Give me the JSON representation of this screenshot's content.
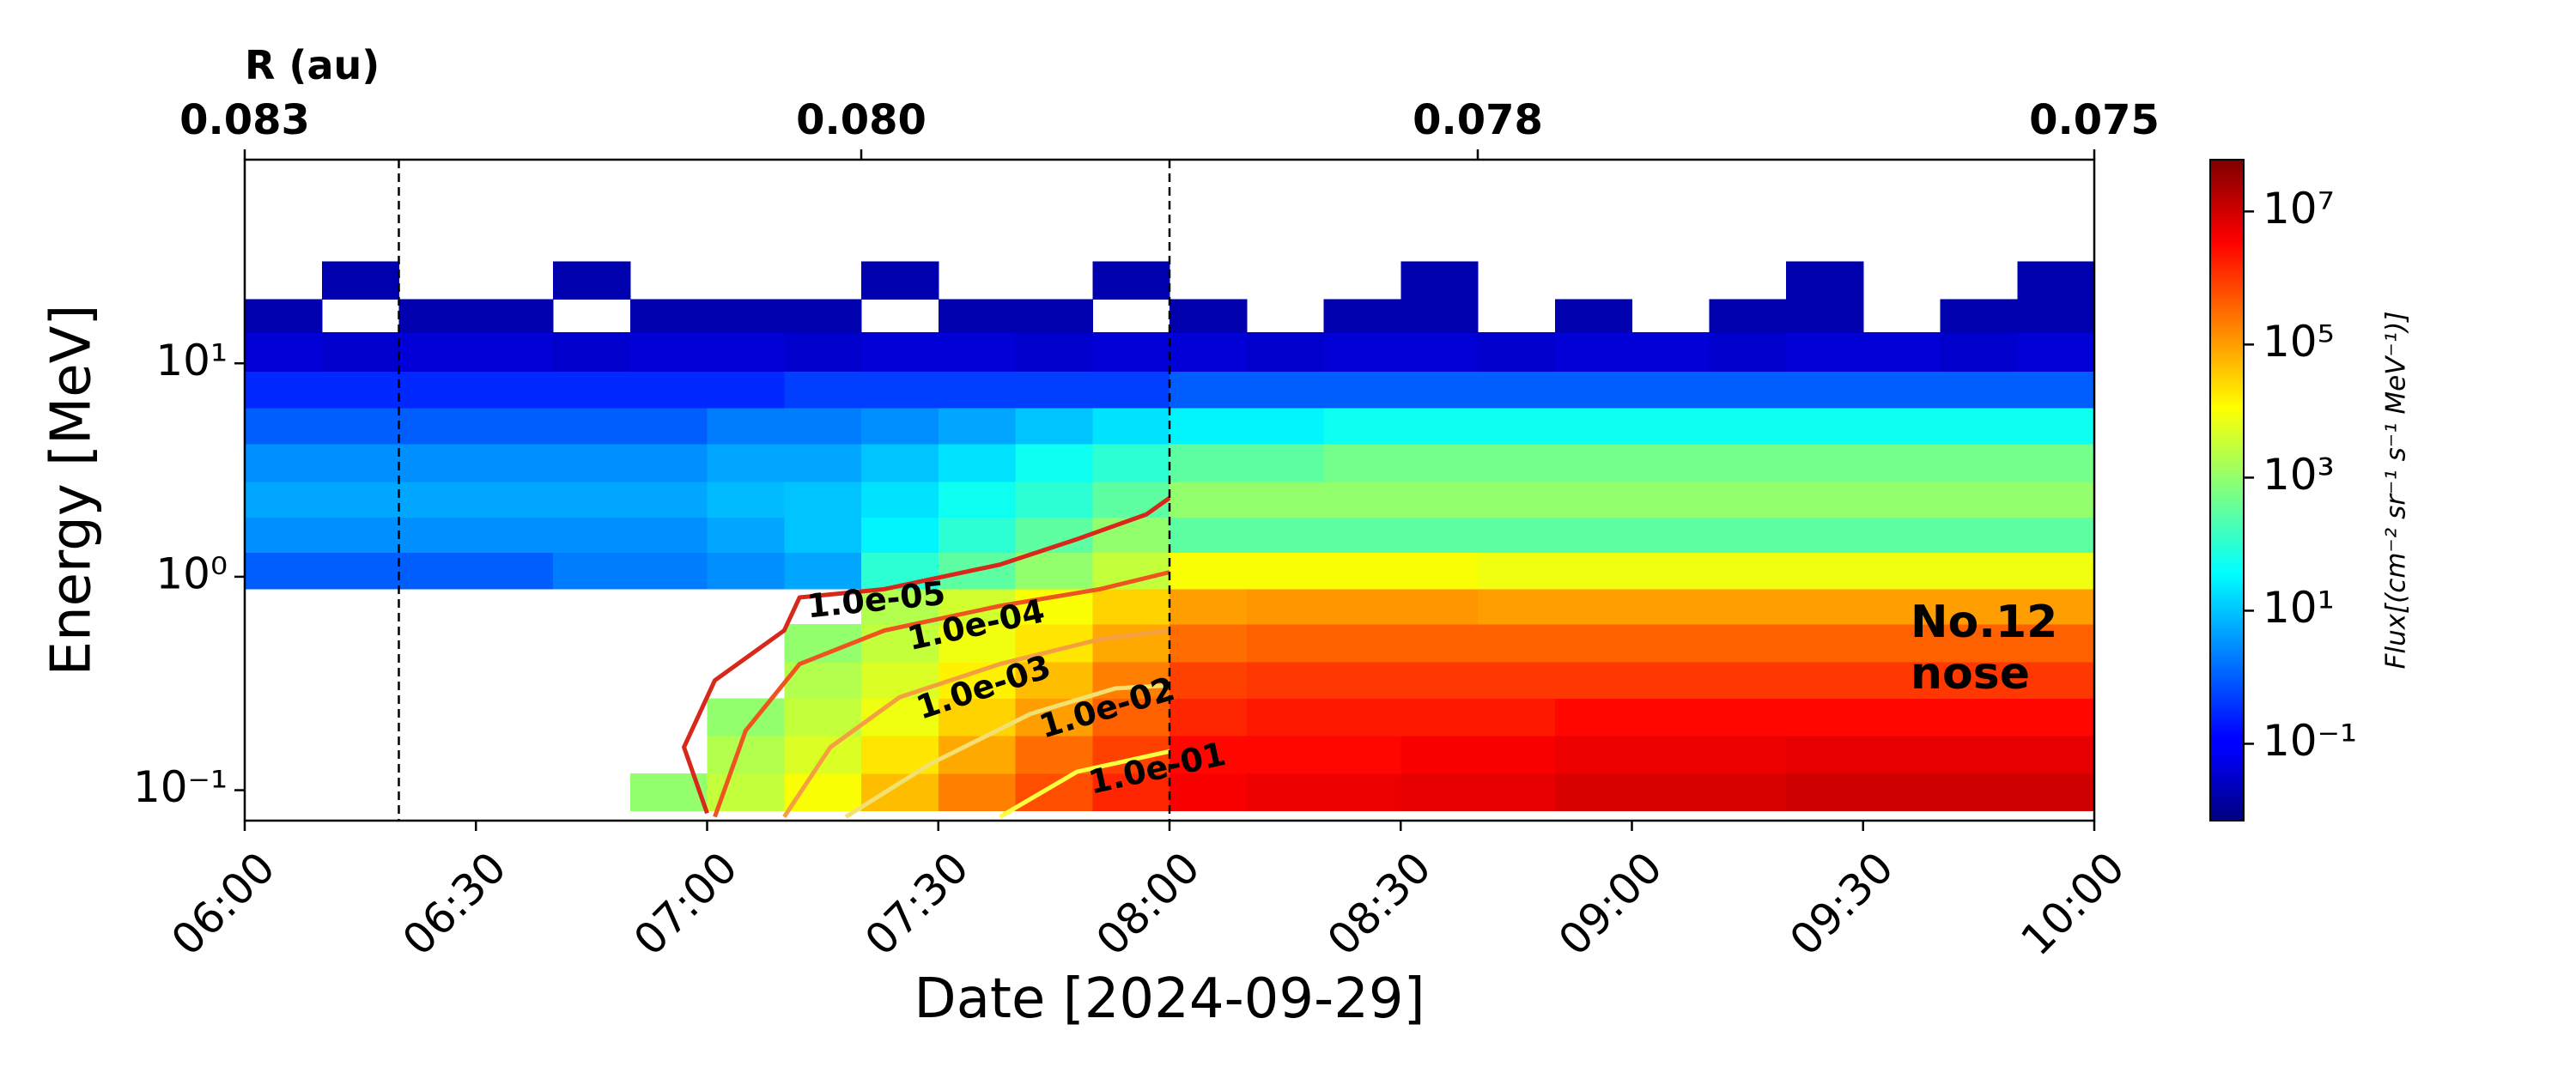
{
  "chart_data": {
    "type": "heatmap",
    "xlabel": "Date [2024-09-29]",
    "ylabel": "Energy [MeV]",
    "xlim": [
      "06:00",
      "10:00"
    ],
    "xticks": [
      "06:00",
      "06:30",
      "07:00",
      "07:30",
      "08:00",
      "08:30",
      "09:00",
      "09:30",
      "10:00"
    ],
    "x2label": "R (au)",
    "x2ticks": [
      {
        "value": "06:00",
        "label": "0.083"
      },
      {
        "value": "07:20",
        "label": "0.080"
      },
      {
        "value": "08:40",
        "label": "0.078"
      },
      {
        "value": "10:00",
        "label": "0.075"
      }
    ],
    "ylim": [
      0.072,
      90
    ],
    "yscale": "log",
    "yticks": [
      {
        "value": 0.1,
        "label": "10⁻¹"
      },
      {
        "value": 1,
        "label": "10⁰"
      },
      {
        "value": 10,
        "label": "10¹"
      }
    ],
    "x_edges": [
      "06:00",
      "06:10",
      "06:20",
      "06:30",
      "06:40",
      "06:50",
      "07:00",
      "07:10",
      "07:20",
      "07:30",
      "07:40",
      "07:50",
      "08:00",
      "08:10",
      "08:20",
      "08:30",
      "08:40",
      "08:50",
      "09:00",
      "09:10",
      "09:20",
      "09:30",
      "09:40",
      "09:50",
      "10:00"
    ],
    "y_edges": [
      0.08,
      0.12,
      0.18,
      0.27,
      0.4,
      0.6,
      0.88,
      1.3,
      1.9,
      2.8,
      4.2,
      6.2,
      9.2,
      14,
      20,
      30
    ],
    "z": [
      [
        null,
        null,
        null,
        null,
        null,
        1000.0,
        3000.0,
        10000.0,
        50000.0,
        200000.0,
        600000.0,
        1500000.0,
        4000000.0,
        5000000.0,
        5000000.0,
        6000000.0,
        6000000.0,
        8000000.0,
        8000000.0,
        8000000.0,
        10000000.0,
        10000000.0,
        10000000.0,
        10000000.0
      ],
      [
        null,
        null,
        null,
        null,
        null,
        null,
        2000.0,
        5000.0,
        20000.0,
        80000.0,
        300000.0,
        800000.0,
        3000000.0,
        3000000.0,
        3000000.0,
        4000000.0,
        4000000.0,
        5000000.0,
        5000000.0,
        5000000.0,
        6000000.0,
        6000000.0,
        6000000.0,
        6000000.0
      ],
      [
        null,
        null,
        null,
        null,
        null,
        null,
        1000.0,
        3000.0,
        8000.0,
        30000.0,
        100000.0,
        400000.0,
        1500000.0,
        2000000.0,
        2000000.0,
        2000000.0,
        2000000.0,
        3000000.0,
        3000000.0,
        3000000.0,
        3000000.0,
        3000000.0,
        3000000.0,
        3000000.0
      ],
      [
        null,
        null,
        null,
        null,
        null,
        null,
        null,
        2000.0,
        5000.0,
        15000.0,
        50000.0,
        200000.0,
        800000.0,
        1000000.0,
        1000000.0,
        1000000.0,
        1000000.0,
        1000000.0,
        1000000.0,
        1000000.0,
        1000000.0,
        1000000.0,
        1000000.0,
        1000000.0
      ],
      [
        null,
        null,
        null,
        null,
        null,
        null,
        null,
        1000.0,
        3000.0,
        8000.0,
        20000.0,
        80000.0,
        300000.0,
        400000.0,
        400000.0,
        400000.0,
        400000.0,
        400000.0,
        400000.0,
        400000.0,
        400000.0,
        400000.0,
        400000.0,
        400000.0
      ],
      [
        null,
        null,
        null,
        null,
        null,
        null,
        null,
        null,
        2000.0,
        4000.0,
        10000.0,
        30000.0,
        100000.0,
        120000.0,
        120000.0,
        120000.0,
        100000.0,
        100000.0,
        100000.0,
        100000.0,
        100000.0,
        100000.0,
        100000.0,
        100000.0
      ],
      [
        1,
        1,
        1,
        1,
        2,
        2,
        3,
        5,
        100.0,
        300.0,
        1000.0,
        3000.0,
        10000.0,
        10000.0,
        10000.0,
        10000.0,
        8000.0,
        8000.0,
        8000.0,
        8000.0,
        8000.0,
        8000.0,
        8000.0,
        8000.0
      ],
      [
        3,
        3,
        3,
        3,
        3,
        3,
        5,
        10,
        30,
        100.0,
        300.0,
        1000.0,
        300.0,
        300.0,
        300.0,
        300.0,
        300.0,
        300.0,
        300.0,
        300.0,
        300.0,
        300.0,
        300.0,
        300.0
      ],
      [
        5,
        5,
        5,
        5,
        5,
        5,
        8,
        10,
        20,
        50,
        100.0,
        300.0,
        1000.0,
        1000.0,
        1000.0,
        1000.0,
        1000.0,
        1000.0,
        1000.0,
        1000.0,
        1000.0,
        1000.0,
        1000.0,
        1000.0
      ],
      [
        3,
        3,
        3,
        3,
        3,
        3,
        5,
        5,
        10,
        20,
        50,
        100.0,
        300.0,
        300.0,
        500.0,
        500.0,
        500.0,
        500.0,
        500.0,
        500.0,
        500.0,
        500.0,
        500.0,
        500.0
      ],
      [
        1,
        1,
        1,
        1,
        1,
        1,
        2,
        2,
        3,
        5,
        10,
        20,
        30,
        30,
        50,
        50,
        50,
        50,
        50,
        50,
        50,
        50,
        50,
        50
      ],
      [
        0.3,
        0.3,
        0.3,
        0.3,
        0.3,
        0.3,
        0.3,
        0.5,
        0.5,
        0.5,
        0.5,
        0.5,
        1,
        1,
        1,
        1,
        1,
        1,
        1,
        1,
        1,
        1,
        1,
        1
      ],
      [
        0.05,
        0.04,
        0.05,
        0.05,
        0.04,
        0.05,
        0.05,
        0.04,
        0.05,
        0.05,
        0.04,
        0.05,
        0.05,
        0.04,
        0.05,
        0.05,
        0.04,
        0.05,
        0.05,
        0.04,
        0.05,
        0.05,
        0.04,
        0.05
      ],
      [
        0.02,
        null,
        0.02,
        0.02,
        null,
        0.02,
        0.02,
        0.02,
        null,
        0.02,
        0.02,
        null,
        0.02,
        null,
        0.02,
        0.02,
        null,
        0.02,
        null,
        0.02,
        0.02,
        null,
        0.02,
        0.02
      ],
      [
        null,
        0.02,
        null,
        null,
        0.02,
        null,
        null,
        null,
        0.02,
        null,
        null,
        0.02,
        null,
        null,
        null,
        0.02,
        null,
        null,
        null,
        null,
        0.02,
        null,
        null,
        0.02
      ]
    ],
    "colorbar": {
      "label": "Flux[(cm⁻² sr⁻¹ s⁻¹ MeV⁻¹)]",
      "lim": [
        0.007,
        60000000.0
      ],
      "scale": "log",
      "colormap": "jet",
      "ticks": [
        {
          "value": 0.1,
          "label": "10⁻¹"
        },
        {
          "value": 10,
          "label": "10¹"
        },
        {
          "value": 1000,
          "label": "10³"
        },
        {
          "value": 100000,
          "label": "10⁵"
        },
        {
          "value": 10000000,
          "label": "10⁷"
        }
      ]
    },
    "vlines": [
      "06:20",
      "08:00"
    ],
    "contours": [
      {
        "label": "1.0e-05",
        "color": "#d8281c",
        "x": [
          "07:00",
          "06:57",
          "07:01",
          "07:10",
          "07:12",
          "07:23",
          "07:38",
          "07:48",
          "07:57",
          "08:00"
        ],
        "y": [
          0.078,
          0.159,
          0.327,
          0.56,
          0.8,
          0.875,
          1.14,
          1.5,
          1.96,
          2.34
        ]
      },
      {
        "label": "1.0e-04",
        "color": "#ee5420",
        "x": [
          "07:01",
          "07:05",
          "07:12",
          "07:23",
          "07:38",
          "07:51",
          "08:00"
        ],
        "y": [
          0.075,
          0.19,
          0.39,
          0.56,
          0.73,
          0.875,
          1.05
        ]
      },
      {
        "label": "1.0e-03",
        "color": "#f4a040",
        "x": [
          "07:10",
          "07:16",
          "07:25",
          "07:38",
          "07:51",
          "08:00"
        ],
        "y": [
          0.075,
          0.159,
          0.273,
          0.39,
          0.51,
          0.56
        ]
      },
      {
        "label": "1.0e-02",
        "color": "#f3e070",
        "x": [
          "07:18",
          "07:29",
          "07:42",
          "07:53",
          "08:00"
        ],
        "y": [
          0.075,
          0.133,
          0.228,
          0.3,
          0.31
        ]
      },
      {
        "label": "1.0e-01",
        "color": "#ffff40",
        "x": [
          "07:38",
          "07:48",
          "08:00"
        ],
        "y": [
          0.075,
          0.122,
          0.152
        ]
      }
    ],
    "annotation": [
      "No.12",
      "nose"
    ]
  }
}
